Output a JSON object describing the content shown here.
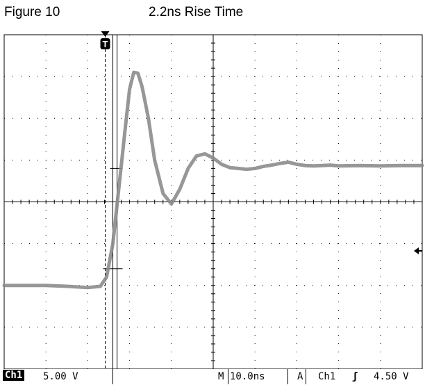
{
  "figure": {
    "label": "Figure 10",
    "title": "2.2ns Rise Time"
  },
  "scope": {
    "trigger_marker": "T",
    "status": {
      "channel": "Ch1",
      "volts_per_div": "5.00 V",
      "timebase_label": "M",
      "timebase": "10.0ns",
      "trigger_mode": "A",
      "trigger_source": "Ch1",
      "trigger_slope_symbol": "ʃ",
      "trigger_level": "4.50 V"
    },
    "colors": {
      "trace": "#8c8c8c",
      "grid": "#000000",
      "background": "#ffffff"
    }
  },
  "chart_data": {
    "type": "line",
    "title": "2.2ns Rise Time",
    "xlabel": "",
    "ylabel": "",
    "x_units": "divisions",
    "y_units": "divisions",
    "xlim": [
      0,
      10
    ],
    "ylim": [
      -4,
      4
    ],
    "grid": true,
    "x_divisions": 10,
    "y_divisions": 8,
    "series": [
      {
        "name": "",
        "x": [
          0.0,
          0.5,
          1.0,
          1.5,
          2.0,
          2.3,
          2.45,
          2.6,
          2.75,
          2.9,
          3.0,
          3.1,
          3.2,
          3.3,
          3.45,
          3.6,
          3.8,
          4.0,
          4.2,
          4.4,
          4.6,
          4.8,
          5.0,
          5.2,
          5.4,
          5.6,
          5.8,
          6.0,
          6.2,
          6.4,
          6.6,
          6.8,
          7.0,
          7.2,
          7.4,
          7.6,
          7.8,
          8.0,
          8.5,
          9.0,
          9.5,
          10.0
        ],
        "y": [
          -2.0,
          -2.0,
          -2.0,
          -2.02,
          -2.05,
          -2.02,
          -1.8,
          -1.0,
          0.4,
          1.8,
          2.7,
          3.1,
          3.08,
          2.75,
          2.0,
          1.0,
          0.2,
          -0.05,
          0.3,
          0.8,
          1.1,
          1.15,
          1.05,
          0.9,
          0.82,
          0.8,
          0.78,
          0.8,
          0.85,
          0.88,
          0.92,
          0.95,
          0.9,
          0.87,
          0.86,
          0.87,
          0.88,
          0.86,
          0.87,
          0.86,
          0.87,
          0.87
        ]
      }
    ],
    "cursors": {
      "trigger_position_div": 2.6,
      "cursor1_div": 2.6,
      "cursor2_div": 2.85
    }
  }
}
